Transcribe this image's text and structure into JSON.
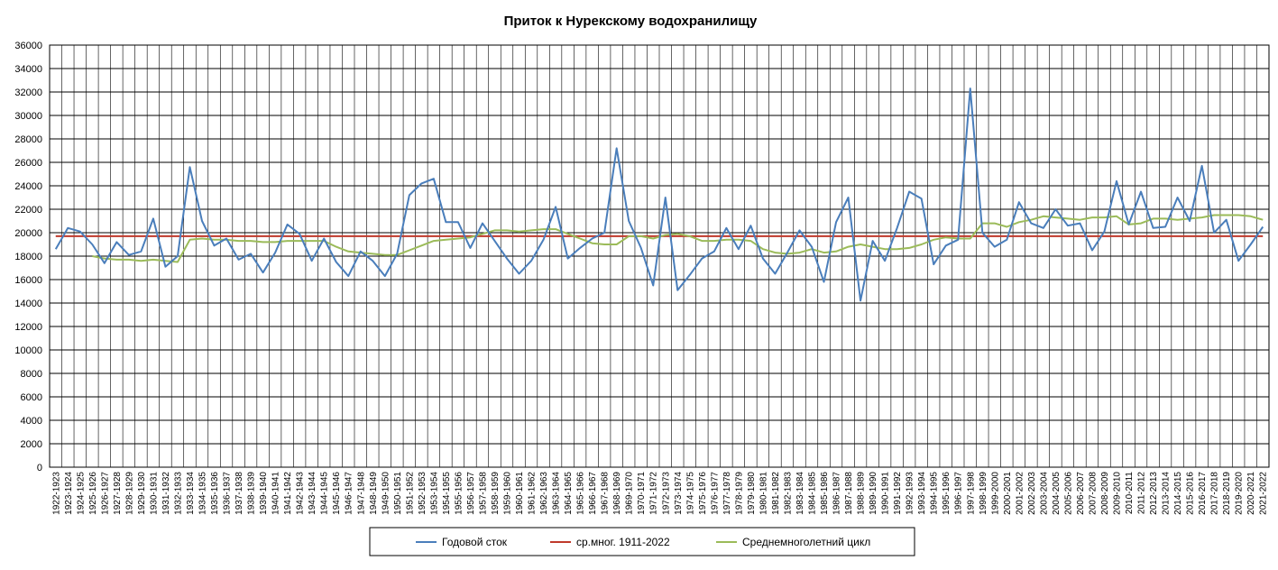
{
  "chart_data": {
    "type": "line",
    "title": "Приток к Нурекскому водохранилищу",
    "xlabel": "",
    "ylabel": "",
    "ylim": [
      0,
      36000
    ],
    "yticks": [
      0,
      2000,
      4000,
      6000,
      8000,
      10000,
      12000,
      14000,
      16000,
      18000,
      20000,
      22000,
      24000,
      26000,
      28000,
      30000,
      32000,
      34000,
      36000
    ],
    "grid": true,
    "legend_position": "bottom",
    "categories": [
      "1922-1923",
      "1923-1924",
      "1924-1925",
      "1925-1926",
      "1926-1927",
      "1927-1928",
      "1928-1929",
      "1929-1930",
      "1930-1931",
      "1931-1932",
      "1932-1933",
      "1933-1934",
      "1934-1935",
      "1935-1936",
      "1936-1937",
      "1937-1938",
      "1938-1939",
      "1939-1940",
      "1940-1941",
      "1941-1942",
      "1942-1943",
      "1943-1944",
      "1944-1945",
      "1945-1946",
      "1946-1947",
      "1947-1948",
      "1948-1949",
      "1949-1950",
      "1950-1951",
      "1951-1952",
      "1952-1953",
      "1953-1954",
      "1954-1955",
      "1955-1956",
      "1956-1957",
      "1957-1958",
      "1958-1959",
      "1959-1960",
      "1960-1961",
      "1961-1962",
      "1962-1963",
      "1963-1964",
      "1964-1965",
      "1965-1966",
      "1966-1967",
      "1967-1968",
      "1968-1969",
      "1969-1970",
      "1970-1971",
      "1971-1972",
      "1972-1973",
      "1973-1974",
      "1974-1975",
      "1975-1976",
      "1976-1977",
      "1977-1978",
      "1978-1979",
      "1979-1980",
      "1980-1981",
      "1981-1982",
      "1982-1983",
      "1983-1984",
      "1984-1985",
      "1985-1986",
      "1986-1987",
      "1987-1988",
      "1988-1989",
      "1989-1990",
      "1990-1991",
      "1991-1992",
      "1992-1993",
      "1993-1994",
      "1994-1995",
      "1995-1996",
      "1996-1997",
      "1997-1998",
      "1998-1999",
      "1999-2000",
      "2000-2001",
      "2001-2002",
      "2002-2003",
      "2003-2004",
      "2004-2005",
      "2005-2006",
      "2006-2007",
      "2007-2008",
      "2008-2009",
      "2009-2010",
      "2010-2011",
      "2011-2012",
      "2012-2013",
      "2013-2014",
      "2014-2015",
      "2015-2016",
      "2016-2017",
      "2017-2018",
      "2018-2019",
      "2019-2020",
      "2020-2021",
      "2021-2022"
    ],
    "series": [
      {
        "name": "Годовой сток",
        "color": "#4a7ebb",
        "values": [
          18600,
          20400,
          20100,
          19000,
          17400,
          19200,
          18100,
          18400,
          21200,
          17100,
          18000,
          25600,
          21000,
          18900,
          19500,
          17700,
          18200,
          16600,
          18300,
          20700,
          19900,
          17600,
          19500,
          17500,
          16300,
          18400,
          17600,
          16300,
          18200,
          23200,
          24200,
          24600,
          20900,
          20900,
          18700,
          20800,
          19300,
          17800,
          16500,
          17600,
          19400,
          22200,
          17800,
          18700,
          19500,
          20000,
          27200,
          21000,
          18700,
          15500,
          23000,
          15100,
          16400,
          17800,
          18400,
          20400,
          18600,
          20600,
          17800,
          16500,
          18300,
          20200,
          18800,
          15800,
          20900,
          23000,
          14200,
          19300,
          17600,
          20400,
          23500,
          22900,
          17300,
          18900,
          19400,
          32300,
          20000,
          18800,
          19400,
          22600,
          20800,
          20400,
          22000,
          20600,
          20800,
          18500,
          20100,
          24400,
          20700,
          23500,
          20400,
          20500,
          23000,
          21000,
          25700,
          20000,
          21100,
          17600,
          19000,
          20500
        ]
      },
      {
        "name": "ср.мног. 1911-2022",
        "color": "#c0392b",
        "values": [
          19700,
          19700,
          19700,
          19700,
          19700,
          19700,
          19700,
          19700,
          19700,
          19700,
          19700,
          19700,
          19700,
          19700,
          19700,
          19700,
          19700,
          19700,
          19700,
          19700,
          19700,
          19700,
          19700,
          19700,
          19700,
          19700,
          19700,
          19700,
          19700,
          19700,
          19700,
          19700,
          19700,
          19700,
          19700,
          19700,
          19700,
          19700,
          19700,
          19700,
          19700,
          19700,
          19700,
          19700,
          19700,
          19700,
          19700,
          19700,
          19700,
          19700,
          19700,
          19700,
          19700,
          19700,
          19700,
          19700,
          19700,
          19700,
          19700,
          19700,
          19700,
          19700,
          19700,
          19700,
          19700,
          19700,
          19700,
          19700,
          19700,
          19700,
          19700,
          19700,
          19700,
          19700,
          19700,
          19700,
          19700,
          19700,
          19700,
          19700,
          19700,
          19700,
          19700,
          19700,
          19700,
          19700,
          19700,
          19700,
          19700,
          19700,
          19700,
          19700,
          19700,
          19700,
          19700,
          19700,
          19700,
          19700,
          19700,
          19700
        ]
      },
      {
        "name": "Среднемноголетний цикл",
        "color": "#9bbb59",
        "start_index": 3,
        "values": [
          null,
          null,
          null,
          18000,
          17800,
          17700,
          17700,
          17600,
          17700,
          17600,
          17500,
          19400,
          19500,
          19400,
          19400,
          19300,
          19300,
          19200,
          19200,
          19300,
          19300,
          19300,
          19300,
          18800,
          18400,
          18300,
          18200,
          18100,
          18100,
          18500,
          18900,
          19300,
          19400,
          19500,
          19600,
          19900,
          20200,
          20200,
          20100,
          20200,
          20300,
          20300,
          19900,
          19500,
          19100,
          19000,
          19000,
          19700,
          19700,
          19500,
          19800,
          19900,
          19700,
          19300,
          19300,
          19400,
          19400,
          19300,
          18600,
          18300,
          18200,
          18300,
          18600,
          18300,
          18400,
          18800,
          19000,
          18800,
          18600,
          18600,
          18700,
          19000,
          19400,
          19600,
          19500,
          19500,
          20800,
          20800,
          20500,
          20900,
          21100,
          21400,
          21300,
          21200,
          21100,
          21300,
          21300,
          21400,
          20700,
          20800,
          21200,
          21200,
          21100,
          21200,
          21300,
          21500,
          21500,
          21500,
          21400,
          21100
        ]
      }
    ]
  }
}
